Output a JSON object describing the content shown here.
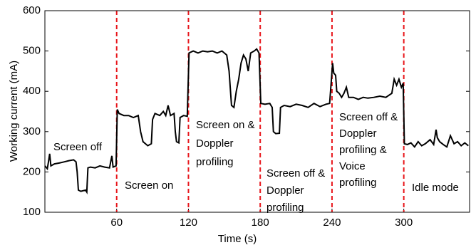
{
  "chart_data": {
    "type": "line",
    "x_label": "Time (s)",
    "y_label": "Working current (mA)",
    "xlim": [
      0,
      355
    ],
    "ylim": [
      100,
      600
    ],
    "xticks": [
      60,
      120,
      180,
      240,
      300
    ],
    "yticks": [
      100,
      200,
      300,
      400,
      500,
      600
    ],
    "dividers": {
      "color": "#e8161b",
      "x": [
        60,
        120,
        180,
        240,
        300
      ]
    },
    "annotations": [
      [
        "Screen off"
      ],
      [
        "Screen on"
      ],
      [
        "Screen on &",
        "Doppler",
        "profiling"
      ],
      [
        "Screen off &",
        "Doppler",
        "profiling"
      ],
      [
        "Screen off &",
        "Doppler",
        "profiling &",
        "Voice",
        "profiling"
      ],
      [
        "Idle mode"
      ]
    ],
    "series": [
      {
        "color": "#000000",
        "x": [
          0,
          2,
          3,
          4,
          5,
          8,
          12,
          16,
          20,
          24,
          26,
          27,
          28,
          30,
          34,
          35,
          36,
          38,
          42,
          46,
          50,
          54,
          56,
          57,
          59.5,
          60.5,
          62,
          66,
          70,
          74,
          78,
          80,
          82,
          86,
          89,
          90,
          92,
          96,
          99,
          101,
          103,
          105,
          108,
          109,
          110,
          112,
          113,
          116,
          119,
          120.5,
          124,
          128,
          132,
          136,
          140,
          144,
          148,
          152,
          154,
          156,
          158,
          160,
          162,
          164,
          166,
          168,
          170,
          172,
          175,
          177,
          179,
          180.5,
          184,
          188,
          190,
          191,
          193,
          196,
          197,
          200,
          205,
          210,
          215,
          220,
          225,
          230,
          235,
          238,
          240.5,
          241.5,
          243,
          244,
          246,
          248,
          250,
          252,
          254,
          258,
          262,
          266,
          270,
          275,
          280,
          285,
          290,
          292,
          294,
          296,
          298,
          299.5,
          300.5,
          303,
          306,
          309,
          312,
          315,
          318,
          322,
          325,
          327,
          328,
          330,
          333,
          336,
          339,
          342,
          345,
          348,
          351,
          354
        ],
        "values": [
          215,
          208,
          225,
          245,
          215,
          220,
          222,
          225,
          228,
          230,
          225,
          200,
          155,
          152,
          155,
          150,
          210,
          212,
          210,
          215,
          212,
          210,
          240,
          212,
          215,
          355,
          345,
          340,
          340,
          335,
          340,
          300,
          275,
          265,
          270,
          330,
          345,
          340,
          350,
          340,
          365,
          340,
          345,
          300,
          275,
          272,
          335,
          340,
          338,
          495,
          500,
          495,
          500,
          498,
          500,
          495,
          500,
          490,
          450,
          365,
          360,
          400,
          430,
          470,
          490,
          480,
          450,
          495,
          500,
          505,
          495,
          370,
          368,
          370,
          360,
          300,
          295,
          296,
          360,
          365,
          362,
          368,
          365,
          360,
          370,
          362,
          368,
          370,
          470,
          445,
          440,
          400,
          395,
          385,
          395,
          410,
          385,
          385,
          380,
          385,
          383,
          385,
          388,
          385,
          395,
          430,
          415,
          430,
          410,
          420,
          270,
          268,
          272,
          262,
          275,
          265,
          270,
          280,
          268,
          305,
          285,
          275,
          268,
          262,
          290,
          270,
          275,
          265,
          272,
          265
        ]
      }
    ]
  }
}
